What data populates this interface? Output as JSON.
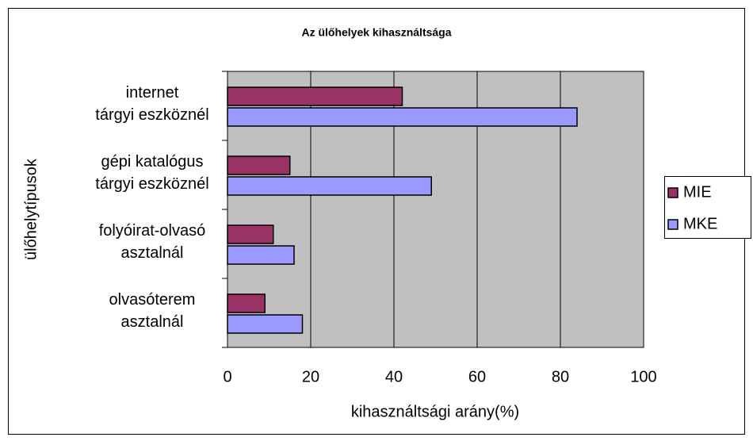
{
  "chart_data": {
    "type": "bar",
    "orientation": "horizontal",
    "title": "Az ülőhelyek kihasználtsága",
    "xlabel": "kihasználtsági arány(%)",
    "ylabel": "ülőhelytípusok",
    "categories": [
      [
        "internet",
        "tárgyi eszköznél"
      ],
      [
        "gépi katalógus",
        "tárgyi eszköznél"
      ],
      [
        "folyóirat-olvasó",
        "asztalnál"
      ],
      [
        "olvasóterem",
        "asztalnál"
      ]
    ],
    "series": [
      {
        "name": "MIE",
        "color": "#993366",
        "values": [
          42,
          15,
          11,
          9
        ]
      },
      {
        "name": "MKE",
        "color": "#9999ff",
        "values": [
          84,
          49,
          16,
          18
        ]
      }
    ],
    "xlim": [
      0,
      100
    ],
    "xticks": [
      0,
      20,
      40,
      60,
      80,
      100
    ],
    "grid": true,
    "legend": "right"
  }
}
